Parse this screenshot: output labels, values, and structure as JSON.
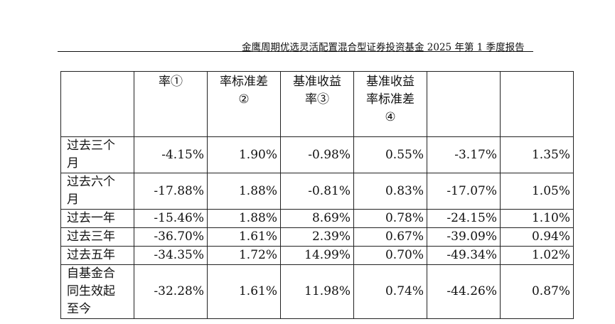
{
  "header": {
    "title": "金鹰周期优选灵活配置混合型证券投资基金 2025 年第 1 季度报告"
  },
  "table": {
    "header_cols": [
      [],
      [
        "率①"
      ],
      [
        "率标准差",
        "②"
      ],
      [
        "基准收益",
        "率③"
      ],
      [
        "基准收益",
        "率标准差",
        "④"
      ],
      [],
      []
    ],
    "rows": [
      {
        "label": [
          "过去三个",
          "月"
        ],
        "values": [
          "-4.15%",
          "1.90%",
          "-0.98%",
          "0.55%",
          "-3.17%",
          "1.35%"
        ]
      },
      {
        "label": [
          "过去六个",
          "月"
        ],
        "values": [
          "-17.88%",
          "1.88%",
          "-0.81%",
          "0.83%",
          "-17.07%",
          "1.05%"
        ]
      },
      {
        "label": [
          "过去一年"
        ],
        "values": [
          "-15.46%",
          "1.88%",
          "8.69%",
          "0.78%",
          "-24.15%",
          "1.10%"
        ]
      },
      {
        "label": [
          "过去三年"
        ],
        "values": [
          "-36.70%",
          "1.61%",
          "2.39%",
          "0.67%",
          "-39.09%",
          "0.94%"
        ]
      },
      {
        "label": [
          "过去五年"
        ],
        "values": [
          "-34.35%",
          "1.72%",
          "14.99%",
          "0.70%",
          "-49.34%",
          "1.02%"
        ]
      },
      {
        "label": [
          "自基金合",
          "同生效起",
          "至今"
        ],
        "values": [
          "-32.28%",
          "1.61%",
          "11.98%",
          "0.74%",
          "-44.26%",
          "0.87%"
        ]
      }
    ]
  }
}
